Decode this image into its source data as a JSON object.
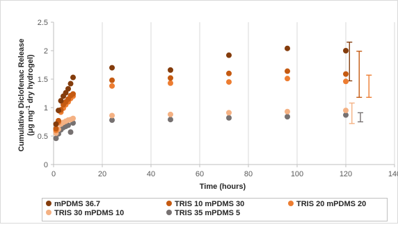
{
  "chart_data": {
    "type": "scatter",
    "xlabel": "Time (hours)",
    "ylabel_line1": "Cumulative Diclofenac Release",
    "ylabel_line2_pre": "(μg mg",
    "ylabel_line2_sup": "-1",
    "ylabel_line2_post": " dry hydrogel)",
    "xlim": [
      0,
      140
    ],
    "ylim": [
      0,
      2.5
    ],
    "x_ticks": [
      "0",
      "20",
      "40",
      "60",
      "80",
      "100",
      "120",
      "140"
    ],
    "y_ticks": [
      "0",
      "0.5",
      "1",
      "1.5",
      "2",
      "2.5"
    ],
    "grid": "vertical",
    "legend_position": "bottom",
    "series": [
      {
        "name": "mPDMS 36.7",
        "color": "#843c0c",
        "points": [
          [
            1,
            0.71
          ],
          [
            2,
            0.95
          ],
          [
            3,
            1.12
          ],
          [
            4,
            1.2
          ],
          [
            5,
            1.26
          ],
          [
            6,
            1.33
          ],
          [
            7,
            1.42
          ],
          [
            8,
            1.53
          ],
          [
            24,
            1.7
          ],
          [
            48,
            1.66
          ],
          [
            72,
            1.92
          ],
          [
            96,
            2.04
          ],
          [
            120,
            2.0
          ]
        ]
      },
      {
        "name": "TRIS 10 mPDMS 30",
        "color": "#c55a11",
        "points": [
          [
            1,
            0.63
          ],
          [
            2,
            0.77
          ],
          [
            3,
            0.96
          ],
          [
            4,
            1.05
          ],
          [
            5,
            1.1
          ],
          [
            6,
            1.15
          ],
          [
            7,
            1.21
          ],
          [
            8,
            1.24
          ],
          [
            24,
            1.48
          ],
          [
            48,
            1.52
          ],
          [
            72,
            1.6
          ],
          [
            96,
            1.64
          ],
          [
            120,
            1.59
          ]
        ]
      },
      {
        "name": "TRIS 20 mPDMS 20",
        "color": "#ed7d31",
        "points": [
          [
            1,
            0.6
          ],
          [
            2,
            0.74
          ],
          [
            3,
            0.92
          ],
          [
            4,
            0.99
          ],
          [
            5,
            1.05
          ],
          [
            6,
            1.1
          ],
          [
            7,
            1.16
          ],
          [
            8,
            1.2
          ],
          [
            24,
            1.38
          ],
          [
            48,
            1.43
          ],
          [
            72,
            1.45
          ],
          [
            96,
            1.51
          ],
          [
            120,
            1.46
          ]
        ]
      },
      {
        "name": "TRIS 30 mPDMS 10",
        "color": "#f4b183",
        "points": [
          [
            1,
            0.55
          ],
          [
            2,
            0.62
          ],
          [
            3,
            0.71
          ],
          [
            4,
            0.74
          ],
          [
            5,
            0.76
          ],
          [
            6,
            0.78
          ],
          [
            7,
            0.79
          ],
          [
            8,
            0.81
          ],
          [
            24,
            0.86
          ],
          [
            48,
            0.88
          ],
          [
            72,
            0.91
          ],
          [
            96,
            0.93
          ],
          [
            120,
            0.95
          ]
        ]
      },
      {
        "name": "TRIS 35 mPDMS 5",
        "color": "#767171",
        "points": [
          [
            1,
            0.46
          ],
          [
            2,
            0.54
          ],
          [
            3,
            0.61
          ],
          [
            4,
            0.65
          ],
          [
            5,
            0.67
          ],
          [
            6,
            0.69
          ],
          [
            7,
            0.57
          ],
          [
            8,
            0.73
          ],
          [
            24,
            0.78
          ],
          [
            48,
            0.79
          ],
          [
            72,
            0.82
          ],
          [
            96,
            0.84
          ],
          [
            120,
            0.87
          ]
        ]
      }
    ],
    "error_bars": [
      {
        "color": "#843c0c",
        "x": 121.5,
        "center": 1.81,
        "low": 1.47,
        "high": 2.15
      },
      {
        "color": "#c55a11",
        "x": 125.5,
        "center": 1.59,
        "low": 1.18,
        "high": 1.99
      },
      {
        "color": "#ed7d31",
        "x": 129.5,
        "center": 1.37,
        "low": 1.18,
        "high": 1.57
      },
      {
        "color": "#f4b183",
        "x": 122.5,
        "center": 0.9,
        "low": 0.72,
        "high": 1.08
      },
      {
        "color": "#767171",
        "x": 126,
        "center": 0.82,
        "low": 0.75,
        "high": 0.91
      }
    ]
  }
}
